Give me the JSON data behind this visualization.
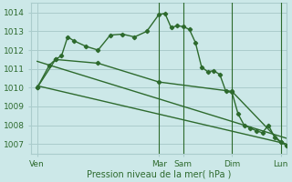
{
  "background_color": "#cce8e8",
  "grid_color": "#aacccc",
  "line_color": "#2d6a2d",
  "title": "Pression niveau de la mer( hPa )",
  "ylim": [
    1006.5,
    1014.5
  ],
  "yticks": [
    1007,
    1008,
    1009,
    1010,
    1011,
    1012,
    1013,
    1014
  ],
  "day_labels": [
    "Ven",
    "Mar",
    "Sam",
    "Dim",
    "Lun"
  ],
  "day_positions": [
    0,
    40,
    48,
    64,
    80
  ],
  "xlim": [
    -2,
    82
  ],
  "vline_positions": [
    40,
    48,
    64,
    80
  ],
  "series1_x": [
    0,
    4,
    6,
    8,
    10,
    12,
    16,
    20,
    24,
    28,
    32,
    36,
    40,
    42,
    44,
    46,
    48,
    50,
    52,
    54,
    56,
    58,
    60,
    62,
    64,
    66,
    68,
    70,
    72,
    74,
    76,
    78,
    80,
    82
  ],
  "series1_y": [
    1010.0,
    1011.2,
    1011.5,
    1011.7,
    1012.7,
    1012.5,
    1012.2,
    1012.0,
    1012.8,
    1012.85,
    1012.7,
    1013.0,
    1013.9,
    1013.95,
    1013.2,
    1013.3,
    1013.25,
    1013.1,
    1012.4,
    1011.1,
    1010.85,
    1010.9,
    1010.7,
    1009.8,
    1009.75,
    1008.6,
    1008.0,
    1007.85,
    1007.7,
    1007.6,
    1008.0,
    1007.35,
    1007.1,
    1006.9
  ],
  "series2_x": [
    0,
    6,
    20,
    40,
    64,
    80
  ],
  "series2_y": [
    1010.0,
    1011.5,
    1011.3,
    1010.3,
    1009.8,
    1007.1
  ],
  "series3_x": [
    0,
    82
  ],
  "series3_y": [
    1010.1,
    1007.0
  ],
  "series4_x": [
    0,
    82
  ],
  "series4_y": [
    1011.4,
    1007.3
  ]
}
